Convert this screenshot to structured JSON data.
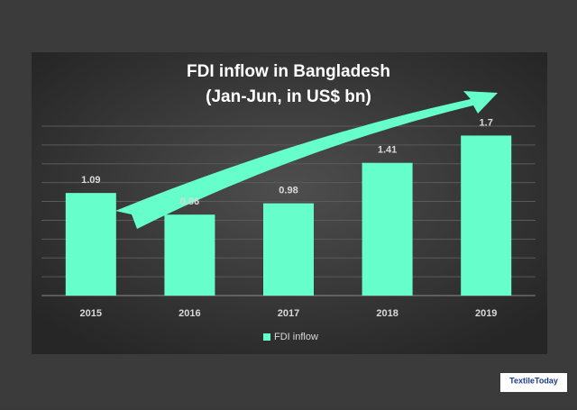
{
  "chart_data": {
    "type": "bar",
    "title": "FDI inflow in Bangladesh",
    "subtitle": "(Jan-Jun, in US$ bn)",
    "categories": [
      "2015",
      "2016",
      "2017",
      "2018",
      "2019"
    ],
    "series": [
      {
        "name": "FDI inflow",
        "color": "#66ffcc",
        "values": [
          1.09,
          0.86,
          0.98,
          1.41,
          1.7
        ]
      }
    ],
    "ylim": [
      0,
      1.8
    ],
    "yticks": [
      0,
      0.2,
      0.4,
      0.6,
      0.8,
      1.0,
      1.2,
      1.4,
      1.6,
      1.8
    ],
    "grid": true,
    "legend": "bottom"
  },
  "logo": "TextileToday"
}
